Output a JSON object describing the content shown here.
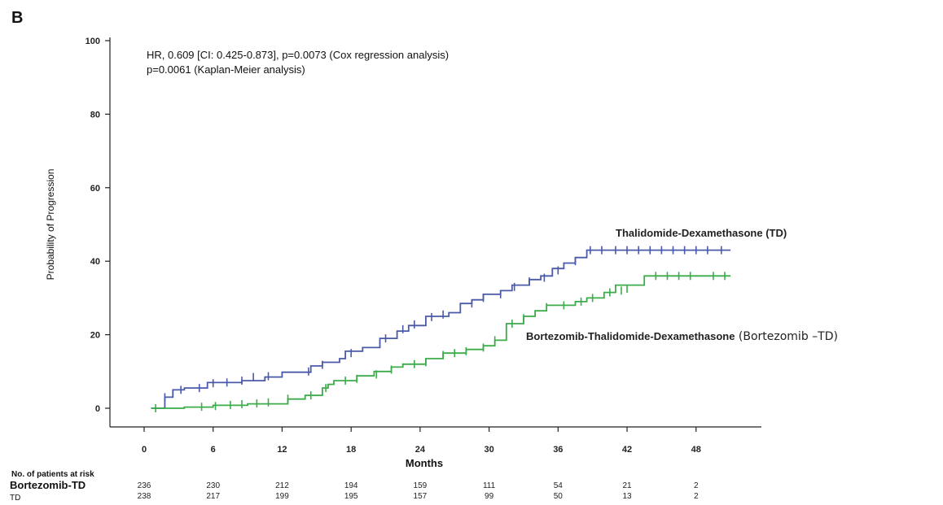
{
  "panel_letter": "B",
  "annotations": [
    "HR, 0.609 [CI: 0.425-0.873], p=0.0073 (Cox regression analysis)",
    "p=0.0061 (Kaplan-Meier analysis)"
  ],
  "colors": {
    "td": "#4a5aa8",
    "btd": "#3cab4a",
    "axis": "#222222"
  },
  "chart_data": {
    "type": "line",
    "title": "",
    "xlabel": "Months",
    "ylabel": "Probability of Progression",
    "xlim": [
      0,
      51
    ],
    "ylim": [
      0,
      100
    ],
    "x_ticks": [
      0,
      6,
      12,
      18,
      24,
      30,
      36,
      42,
      48
    ],
    "y_ticks": [
      0,
      20,
      40,
      60,
      80,
      100
    ],
    "step": true,
    "series": [
      {
        "name": "Thalidomide-Dexamethasone (TD)",
        "color": "#4a5aa8",
        "x": [
          0.6,
          1.8,
          2.5,
          3.5,
          5.5,
          8.5,
          10.5,
          12,
          14.5,
          15.5,
          17,
          17.5,
          19,
          20.5,
          22,
          23,
          24.5,
          26.5,
          27.5,
          28.5,
          29.5,
          31,
          32,
          33.5,
          34.5,
          35.5,
          36.5,
          37.5,
          38.5,
          51
        ],
        "y": [
          0,
          3,
          5,
          5.5,
          7,
          7.5,
          8.5,
          9.8,
          11.5,
          12.5,
          13.5,
          15.5,
          16.5,
          19,
          21,
          22.5,
          25,
          26,
          28.5,
          29.5,
          31,
          32,
          33.5,
          35,
          36,
          38,
          39.5,
          41,
          43,
          43
        ],
        "censored": [
          [
            1.8,
            3
          ],
          [
            3.2,
            5
          ],
          [
            4.8,
            5.5
          ],
          [
            6,
            6.8
          ],
          [
            7.2,
            7
          ],
          [
            8.5,
            7.5
          ],
          [
            9.5,
            8.5
          ],
          [
            10.8,
            8.7
          ],
          [
            14.3,
            10
          ],
          [
            15.5,
            11.8
          ],
          [
            18,
            15
          ],
          [
            21,
            19
          ],
          [
            22.5,
            21.5
          ],
          [
            23.5,
            22.8
          ],
          [
            25,
            24.8
          ],
          [
            26,
            25.5
          ],
          [
            28.5,
            28.5
          ],
          [
            29.5,
            30
          ],
          [
            31,
            31
          ],
          [
            32.2,
            33
          ],
          [
            33.5,
            34.5
          ],
          [
            34.8,
            35.5
          ],
          [
            36,
            37.5
          ],
          [
            37.5,
            40
          ],
          [
            38.8,
            43
          ],
          [
            39.8,
            43
          ],
          [
            41,
            43
          ],
          [
            42,
            43
          ],
          [
            43,
            43
          ],
          [
            44,
            43
          ],
          [
            45,
            43
          ],
          [
            46,
            43
          ],
          [
            47,
            43
          ],
          [
            48,
            43
          ],
          [
            49,
            43
          ],
          [
            50.2,
            43
          ]
        ]
      },
      {
        "name": "Bortezomib-Thalidomide-Dexamethasone",
        "name_suffix": "(Bortezomib –TD)",
        "color": "#3cab4a",
        "x": [
          0.6,
          3.5,
          6,
          9,
          12.5,
          14,
          15.5,
          16,
          16.5,
          18.5,
          20,
          21.5,
          22.5,
          24.5,
          26,
          28,
          29.5,
          30.5,
          31.5,
          33,
          34,
          35,
          37.5,
          38.5,
          40,
          41,
          43.5,
          44,
          51
        ],
        "y": [
          0,
          0.3,
          0.8,
          1.2,
          2.5,
          3.5,
          5.5,
          6.5,
          7.5,
          8.8,
          10,
          11.2,
          12,
          13.5,
          15,
          16,
          17,
          18.5,
          23,
          25,
          26.5,
          28,
          29,
          30,
          31.5,
          33.5,
          36,
          36,
          36
        ],
        "censored": [
          [
            1,
            0
          ],
          [
            5,
            0.4
          ],
          [
            6.2,
            0.6
          ],
          [
            7.5,
            0.9
          ],
          [
            8.5,
            1.1
          ],
          [
            9.8,
            1.3
          ],
          [
            10.8,
            1.6
          ],
          [
            12.5,
            2.6
          ],
          [
            14.5,
            3.5
          ],
          [
            15.8,
            5.5
          ],
          [
            17.5,
            7.5
          ],
          [
            18.5,
            8
          ],
          [
            20.2,
            9.2
          ],
          [
            21.5,
            10.5
          ],
          [
            23.5,
            12
          ],
          [
            24.5,
            12.5
          ],
          [
            26,
            14.5
          ],
          [
            27,
            15
          ],
          [
            28,
            15.5
          ],
          [
            29.5,
            16.5
          ],
          [
            30.5,
            18.5
          ],
          [
            32,
            23
          ],
          [
            33,
            24.5
          ],
          [
            35,
            27.5
          ],
          [
            36.5,
            28
          ],
          [
            38,
            29
          ],
          [
            39,
            30
          ],
          [
            40.5,
            31.5
          ],
          [
            41.5,
            32
          ],
          [
            42,
            32.5
          ],
          [
            44.5,
            36
          ],
          [
            45.5,
            36
          ],
          [
            46.5,
            36
          ],
          [
            47.5,
            36
          ],
          [
            49.5,
            36
          ],
          [
            50.5,
            36
          ]
        ]
      }
    ]
  },
  "risk_table": {
    "title": "No. of patients at risk",
    "rows": [
      {
        "label": "Bortezomib-TD",
        "values": [
          "236",
          "230",
          "212",
          "194",
          "159",
          "111",
          "54",
          "21",
          "2"
        ]
      },
      {
        "label": "TD",
        "values": [
          "238",
          "217",
          "199",
          "195",
          "157",
          "99",
          "50",
          "13",
          "2"
        ]
      }
    ]
  }
}
